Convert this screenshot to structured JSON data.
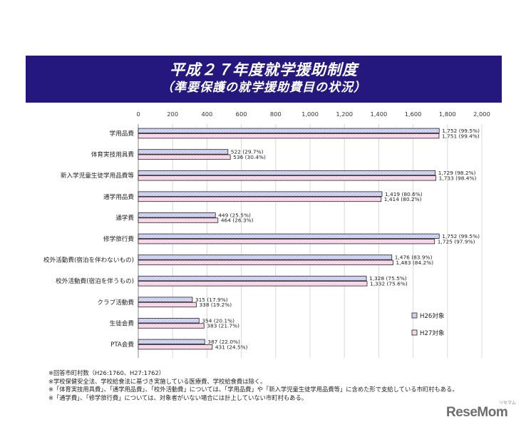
{
  "title": {
    "line1": "平成２７年度就学援助制度",
    "line2": "（準要保護の就学援助費目の状況）"
  },
  "chart_data": {
    "type": "bar",
    "orientation": "horizontal",
    "xlim": [
      0,
      2000
    ],
    "xticks": [
      0,
      200,
      400,
      600,
      800,
      1000,
      1200,
      1400,
      1600,
      1800,
      2000
    ],
    "xtick_labels": [
      "0",
      "200",
      "400",
      "600",
      "800",
      "1,000",
      "1,200",
      "1,400",
      "1,600",
      "1,800",
      "2,000"
    ],
    "grid": "vertical",
    "legend_position": "bottom-right",
    "categories": [
      "学用品費",
      "体育実技用具費",
      "新入学児童生徒学用品費等",
      "通学用品費",
      "通学費",
      "修学旅行費",
      "校外活動費(宿泊を伴わないもの)",
      "校外活動費(宿泊を伴うもの)",
      "クラブ活動費",
      "生徒会費",
      "PTA会費"
    ],
    "series": [
      {
        "name": "H26対象",
        "color": "#c5c8ee",
        "values": [
          1752,
          522,
          1729,
          1419,
          449,
          1752,
          1476,
          1328,
          315,
          354,
          387
        ],
        "labels": [
          "1,752 (99.5%)",
          "522 (29.7%)",
          "1,729 (98.2%)",
          "1,419 (80.6%)",
          "449 (25.5%)",
          "1,752 (99.5%)",
          "1,476 (83.9%)",
          "1,328 (75.5%)",
          "315 (17.9%)",
          "354 (20.1%)",
          "387 (22.0%)"
        ]
      },
      {
        "name": "H27対象",
        "color": "#f7cfe4",
        "values": [
          1751,
          536,
          1733,
          1414,
          464,
          1725,
          1483,
          1332,
          338,
          383,
          431
        ],
        "labels": [
          "1,751 (99.4%)",
          "536 (30.4%)",
          "1,733 (98.4%)",
          "1,414 (80.2%)",
          "464 (26.3%)",
          "1,725 (97.9%)",
          "1,483 (84.2%)",
          "1,332 (75.6%)",
          "338 (19.2%)",
          "383 (21.7%)",
          "431 (24.5%)"
        ]
      }
    ]
  },
  "notes": [
    "※回答市町村数（H26:1760、H27:1762）",
    "※学校保健安全法、学校給食法に基づき実施している医療費、学校給食費は除く。",
    "※「体育実技用具費」、「通学用品費」、「校外活動費」については、「学用品費」や「新入学児童生徒学用品費等」に含めた形で支給している市町村もある。",
    "※「通学費」、「修学旅行費」については、対象者がいない場合には計上していない市町村もある。"
  ],
  "brand": {
    "name": "ReseMom",
    "sub": "リセマム"
  }
}
